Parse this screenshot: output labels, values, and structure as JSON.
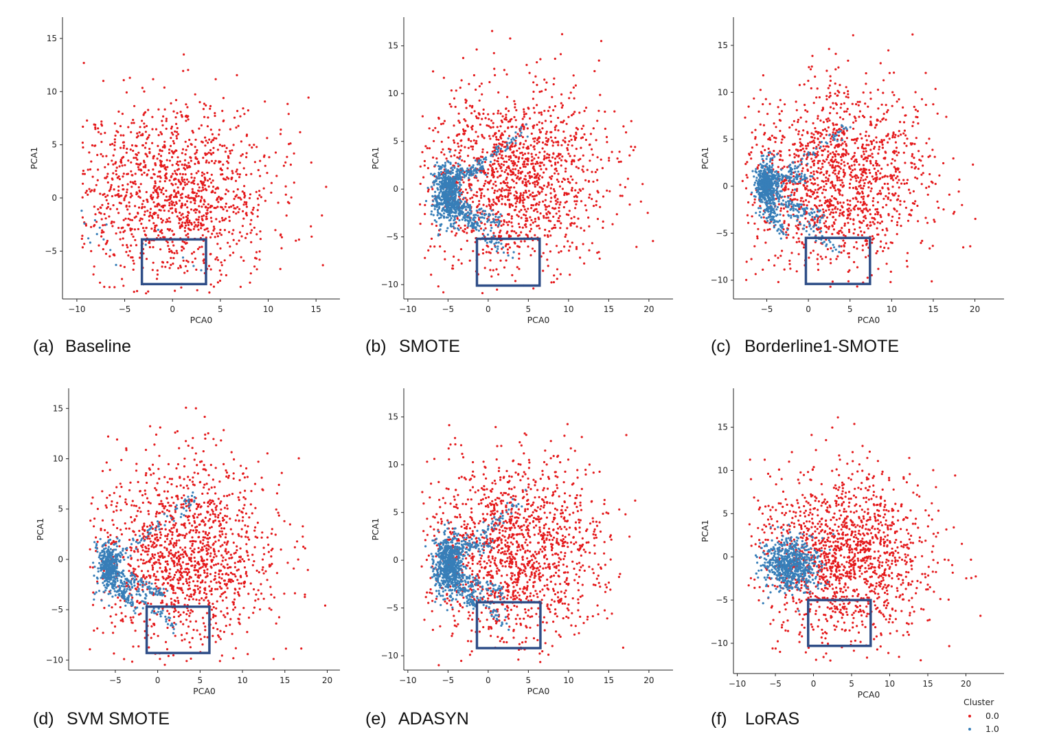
{
  "legend": {
    "title": "Cluster",
    "entries": [
      {
        "label": "0.0",
        "color": "#e41a1c"
      },
      {
        "label": "1.0",
        "color": "#377eb8"
      }
    ]
  },
  "colors": {
    "class0": "#e41a1c",
    "class1": "#377eb8",
    "highlight_box": "#2e4d87"
  },
  "chart_data": [
    {
      "type": "scatter",
      "panel": "a",
      "caption_letter": "(a)",
      "caption_title": "Baseline",
      "xlabel": "PCA0",
      "ylabel": "PCA1",
      "xlim": [
        -11.5,
        17.5
      ],
      "ylim": [
        -9.5,
        17
      ],
      "xticks": [
        -10,
        -5,
        0,
        5,
        10,
        15
      ],
      "yticks": [
        -5,
        0,
        5,
        10,
        15
      ],
      "highlight_box": {
        "x0": -3.2,
        "x1": 3.5,
        "y0": -8.1,
        "y1": -3.9
      },
      "series": [
        {
          "name": "0.0",
          "center": [
            0,
            0.5
          ],
          "spread": [
            5.2,
            4.2
          ],
          "count": 1350,
          "xrange": [
            -9.5,
            16.5
          ],
          "yrange": [
            -9,
            15
          ],
          "seed": 11
        },
        {
          "name": "1.0",
          "points": [
            [
              -9.5,
              -1.2
            ],
            [
              -9.2,
              -2.4
            ],
            [
              -8.8,
              -3.8
            ],
            [
              -8.6,
              -4.2
            ],
            [
              -8.1,
              -2.1
            ],
            [
              -7.9,
              -3.4
            ],
            [
              -7.6,
              -2.8
            ],
            [
              -7.2,
              -3.9
            ],
            [
              -6.9,
              -2.5
            ],
            [
              -6.5,
              -4.9
            ],
            [
              -5.9,
              -6.3
            ],
            [
              -1.5,
              -3.0
            ],
            [
              -2.8,
              -4.4
            ],
            [
              1.1,
              -5.6
            ],
            [
              2.2,
              -6.4
            ],
            [
              3.0,
              -6.8
            ]
          ]
        }
      ]
    },
    {
      "type": "scatter",
      "panel": "b",
      "caption_letter": "(b)",
      "caption_title": "SMOTE",
      "xlabel": "PCA0",
      "ylabel": "PCA1",
      "xlim": [
        -10.5,
        23
      ],
      "ylim": [
        -11.5,
        18
      ],
      "xticks": [
        -10,
        -5,
        0,
        5,
        10,
        15,
        20
      ],
      "yticks": [
        -10,
        -5,
        0,
        5,
        10,
        15
      ],
      "highlight_box": {
        "x0": -1.4,
        "x1": 6.4,
        "y0": -10.1,
        "y1": -5.2
      },
      "series": [
        {
          "name": "0.0",
          "center": [
            3,
            1
          ],
          "spread": [
            5.8,
            4.8
          ],
          "count": 1450,
          "xrange": [
            -8.5,
            22
          ],
          "yrange": [
            -11,
            17
          ],
          "seed": 23
        },
        {
          "name": "1.0",
          "dense": {
            "center": [
              -5,
              -0.5
            ],
            "spread": [
              1.2,
              1.5
            ],
            "count": 550
          },
          "streaks": [
            [
              [
                -5,
                0
              ],
              [
                5,
                6.5
              ]
            ],
            [
              [
                -5,
                -1
              ],
              [
                2.5,
                -7
              ]
            ],
            [
              [
                -4.5,
                -2
              ],
              [
                -1,
                -4
              ]
            ],
            [
              [
                -5,
                1
              ],
              [
                -0.5,
                2.2
              ]
            ],
            [
              [
                -4,
                -1.5
              ],
              [
                1.5,
                -3.5
              ]
            ]
          ],
          "seed": 31
        }
      ]
    },
    {
      "type": "scatter",
      "panel": "c",
      "caption_letter": "(c)",
      "caption_title": "Borderline1-SMOTE",
      "xlabel": "PCA0",
      "ylabel": "PCA1",
      "xlim": [
        -9,
        23.5
      ],
      "ylim": [
        -12,
        18
      ],
      "xticks": [
        -5,
        0,
        5,
        10,
        15,
        20
      ],
      "yticks": [
        -10,
        -5,
        0,
        5,
        10,
        15
      ],
      "highlight_box": {
        "x0": -0.3,
        "x1": 7.4,
        "y0": -10.4,
        "y1": -5.5
      },
      "series": [
        {
          "name": "0.0",
          "center": [
            3.5,
            1
          ],
          "spread": [
            5.6,
            4.8
          ],
          "count": 1450,
          "xrange": [
            -8,
            22.5
          ],
          "yrange": [
            -11,
            17
          ],
          "seed": 41
        },
        {
          "name": "1.0",
          "dense": {
            "center": [
              -5,
              0
            ],
            "spread": [
              0.9,
              1.3
            ],
            "count": 450
          },
          "streaks": [
            [
              [
                -5,
                0
              ],
              [
                4.5,
                6.2
              ]
            ],
            [
              [
                -4.5,
                -1
              ],
              [
                3.5,
                -7
              ]
            ],
            [
              [
                -5,
                -2
              ],
              [
                -3,
                -5
              ]
            ],
            [
              [
                -4.5,
                0.5
              ],
              [
                0,
                1
              ]
            ],
            [
              [
                -4,
                -1
              ],
              [
                2,
                -3.5
              ]
            ]
          ],
          "seed": 53
        }
      ]
    },
    {
      "type": "scatter",
      "panel": "d",
      "caption_letter": "(d)",
      "caption_title": "SVM SMOTE",
      "xlabel": "PCA0",
      "ylabel": "PCA1",
      "xlim": [
        -10.5,
        21.5
      ],
      "ylim": [
        -11,
        17
      ],
      "xticks": [
        -5,
        0,
        5,
        10,
        15,
        20
      ],
      "yticks": [
        -10,
        -5,
        0,
        5,
        10,
        15
      ],
      "highlight_box": {
        "x0": -1.3,
        "x1": 6.1,
        "y0": -9.3,
        "y1": -4.7
      },
      "series": [
        {
          "name": "0.0",
          "center": [
            3,
            0.5
          ],
          "spread": [
            5.5,
            4.8
          ],
          "count": 1450,
          "xrange": [
            -8,
            20
          ],
          "yrange": [
            -10.5,
            16
          ],
          "seed": 61
        },
        {
          "name": "1.0",
          "dense": {
            "center": [
              -5.8,
              -0.8
            ],
            "spread": [
              0.9,
              1.2
            ],
            "count": 380
          },
          "streaks": [
            [
              [
                -5.5,
                -1
              ],
              [
                2.2,
                -7
              ]
            ],
            [
              [
                -5,
                0
              ],
              [
                4.5,
                6.2
              ]
            ],
            [
              [
                -5.5,
                -2
              ],
              [
                -2.5,
                -5
              ]
            ],
            [
              [
                -4.5,
                -1.5
              ],
              [
                1,
                -3.5
              ]
            ]
          ],
          "seed": 71
        }
      ]
    },
    {
      "type": "scatter",
      "panel": "e",
      "caption_letter": "(e)",
      "caption_title": "ADASYN",
      "xlabel": "PCA0",
      "ylabel": "PCA1",
      "xlim": [
        -10.5,
        23
      ],
      "ylim": [
        -11.5,
        18
      ],
      "xticks": [
        -10,
        -5,
        0,
        5,
        10,
        15,
        20
      ],
      "yticks": [
        -10,
        -5,
        0,
        5,
        10,
        15
      ],
      "highlight_box": {
        "x0": -1.4,
        "x1": 6.5,
        "y0": -9.2,
        "y1": -4.4
      },
      "series": [
        {
          "name": "0.0",
          "center": [
            3,
            1
          ],
          "spread": [
            5.8,
            4.8
          ],
          "count": 1450,
          "xrange": [
            -8.5,
            22
          ],
          "yrange": [
            -11,
            17
          ],
          "seed": 83
        },
        {
          "name": "1.0",
          "dense": {
            "center": [
              -5,
              -0.5
            ],
            "spread": [
              1.3,
              1.6
            ],
            "count": 550
          },
          "streaks": [
            [
              [
                -5,
                0
              ],
              [
                5,
                6.8
              ]
            ],
            [
              [
                -5,
                -1
              ],
              [
                2.5,
                -7
              ]
            ],
            [
              [
                -4.5,
                -2
              ],
              [
                -1.5,
                -5
              ]
            ],
            [
              [
                -5,
                1
              ],
              [
                0,
                1.5
              ]
            ],
            [
              [
                -4,
                -1.5
              ],
              [
                2,
                -3.5
              ]
            ]
          ],
          "seed": 97
        }
      ]
    },
    {
      "type": "scatter",
      "panel": "f",
      "caption_letter": "(f)",
      "caption_title": "LoRAS",
      "xlabel": "PCA0",
      "ylabel": "PCA1",
      "xlim": [
        -10.5,
        25
      ],
      "ylim": [
        -13.5,
        19.5
      ],
      "xticks": [
        -10,
        -5,
        0,
        5,
        10,
        15,
        20
      ],
      "yticks": [
        -10,
        -5,
        0,
        5,
        10,
        15
      ],
      "highlight_box": {
        "x0": -0.7,
        "x1": 7.5,
        "y0": -10.3,
        "y1": -5.0
      },
      "series": [
        {
          "name": "0.0",
          "center": [
            4,
            0
          ],
          "spread": [
            5.6,
            5
          ],
          "count": 1450,
          "xrange": [
            -8.5,
            23.5
          ],
          "yrange": [
            -12,
            18.5
          ],
          "seed": 107
        },
        {
          "name": "1.0",
          "dense": {
            "center": [
              -3,
              -1
            ],
            "spread": [
              2.4,
              1.5
            ],
            "count": 650
          },
          "streaks": [],
          "seed": 113
        }
      ]
    }
  ]
}
